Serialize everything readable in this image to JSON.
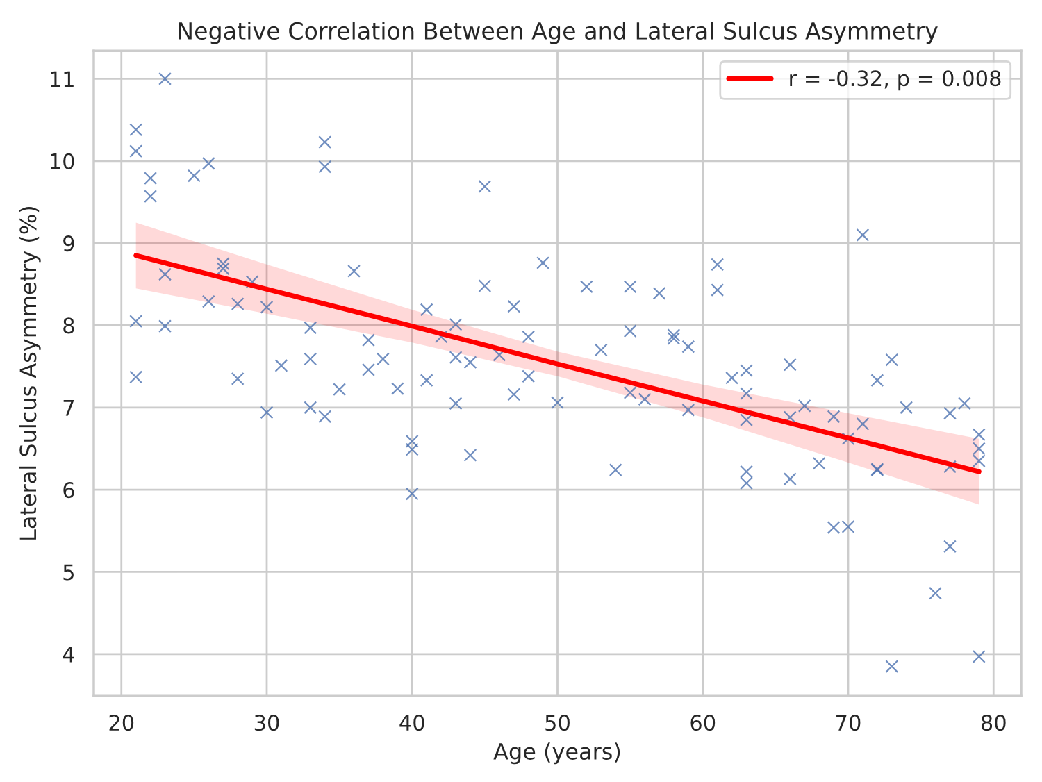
{
  "chart_data": {
    "type": "scatter",
    "title": "Negative Correlation Between Age and Lateral Sulcus Asymmetry",
    "xlabel": "Age (years)",
    "ylabel": "Lateral Sulcus Asymmetry (%)",
    "xlim": [
      18.1,
      81.9
    ],
    "ylim": [
      3.49,
      11.34
    ],
    "xticks": [
      20,
      30,
      40,
      50,
      60,
      70,
      80
    ],
    "yticks": [
      4,
      5,
      6,
      7,
      8,
      9,
      10,
      11
    ],
    "grid": true,
    "legend": "top right",
    "series": [
      {
        "color": "#4c72b0",
        "marker": "cross",
        "x": [
          21,
          21,
          21,
          21,
          22,
          22,
          23,
          23,
          23,
          25,
          26,
          26,
          27,
          27,
          28,
          28,
          29,
          30,
          30,
          31,
          33,
          33,
          33,
          34,
          34,
          34,
          35,
          36,
          37,
          37,
          38,
          39,
          40,
          40,
          40,
          41,
          41,
          42,
          43,
          43,
          43,
          44,
          44,
          45,
          45,
          46,
          47,
          47,
          48,
          48,
          49,
          50,
          52,
          53,
          54,
          55,
          55,
          55,
          56,
          57,
          58,
          58,
          59,
          59,
          61,
          61,
          62,
          63,
          63,
          63,
          63,
          63,
          66,
          66,
          66,
          67,
          68,
          69,
          69,
          70,
          70,
          71,
          71,
          72,
          72,
          72,
          73,
          73,
          74,
          76,
          77,
          77,
          77,
          78,
          79,
          79,
          79,
          79
        ],
        "values": [
          10.38,
          10.12,
          8.05,
          7.37,
          9.79,
          9.57,
          11.0,
          8.62,
          7.99,
          9.82,
          9.97,
          8.29,
          8.75,
          8.69,
          8.26,
          7.35,
          8.53,
          8.22,
          6.94,
          7.51,
          7.97,
          7.59,
          7.0,
          10.23,
          9.93,
          6.89,
          7.22,
          8.66,
          7.82,
          7.46,
          7.59,
          7.23,
          6.59,
          6.49,
          5.95,
          8.19,
          7.33,
          7.86,
          8.01,
          7.61,
          7.05,
          7.55,
          6.42,
          9.69,
          8.48,
          7.64,
          8.23,
          7.16,
          7.86,
          7.38,
          8.76,
          7.06,
          8.47,
          7.7,
          6.24,
          8.47,
          7.93,
          7.18,
          7.1,
          8.39,
          7.88,
          7.84,
          7.74,
          6.97,
          8.74,
          8.43,
          7.36,
          7.45,
          7.17,
          6.85,
          6.22,
          6.08,
          7.52,
          6.88,
          6.13,
          7.02,
          6.32,
          6.89,
          5.54,
          6.62,
          5.55,
          9.1,
          6.8,
          7.33,
          6.24,
          6.25,
          7.58,
          3.85,
          7.0,
          4.74,
          6.93,
          6.28,
          5.31,
          7.05,
          6.67,
          6.5,
          6.35,
          3.97
        ]
      },
      {
        "type": "line",
        "name": "r = -0.32, p = 0.008",
        "color": "#ff0000",
        "line_style": "solid",
        "x": [
          21,
          30,
          40,
          50,
          60,
          70,
          79
        ],
        "values": [
          8.85,
          8.44,
          7.99,
          7.53,
          7.08,
          6.63,
          6.22
        ],
        "lower": [
          8.45,
          8.14,
          7.79,
          7.38,
          6.88,
          6.33,
          5.82
        ],
        "upper": [
          9.25,
          8.74,
          8.19,
          7.68,
          7.28,
          6.93,
          6.62
        ]
      }
    ]
  }
}
